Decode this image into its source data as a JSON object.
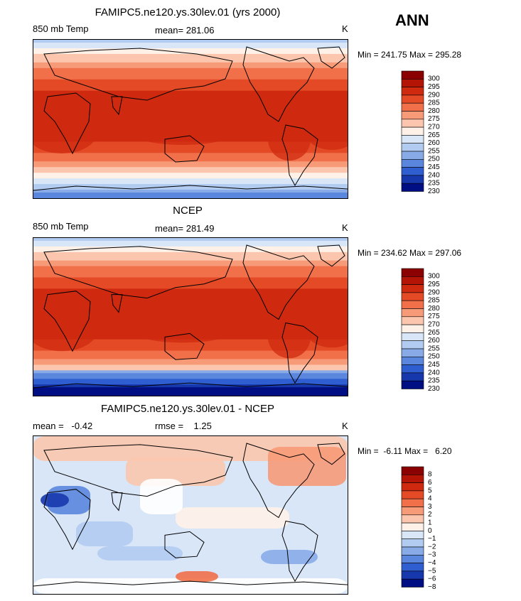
{
  "season": "ANN",
  "chart_data": [
    {
      "type": "heatmap",
      "title": "FAMIPC5.ne120.ys.30lev.01 (yrs 2000)",
      "left_label": "850 mb Temp",
      "stat_text": "mean= 281.06",
      "units": "K",
      "minmax_text": "Min = 241.75 Max = 295.28",
      "min": 241.75,
      "max": 295.28,
      "mean": 281.06,
      "colorbar": {
        "levels": [
          "300",
          "295",
          "290",
          "285",
          "280",
          "275",
          "270",
          "265",
          "260",
          "255",
          "250",
          "245",
          "240",
          "235",
          "230"
        ],
        "colors": [
          "#8b0000",
          "#b31405",
          "#cf2a10",
          "#e34a25",
          "#f1704a",
          "#f79a78",
          "#fbc6ad",
          "#fff1e8",
          "#d8e6f8",
          "#b1cbf1",
          "#88abe8",
          "#5b86dd",
          "#2f5ed0",
          "#1737ad",
          "#000e84"
        ]
      }
    },
    {
      "type": "heatmap",
      "title": "NCEP",
      "left_label": "850 mb Temp",
      "stat_text": "mean= 281.49",
      "units": "K",
      "minmax_text": "Min = 234.62 Max = 297.06",
      "min": 234.62,
      "max": 297.06,
      "mean": 281.49,
      "colorbar": {
        "levels": [
          "300",
          "295",
          "290",
          "285",
          "280",
          "275",
          "270",
          "265",
          "260",
          "255",
          "250",
          "245",
          "240",
          "235",
          "230"
        ],
        "colors": [
          "#8b0000",
          "#b31405",
          "#cf2a10",
          "#e34a25",
          "#f1704a",
          "#f79a78",
          "#fbc6ad",
          "#fff1e8",
          "#d8e6f8",
          "#b1cbf1",
          "#88abe8",
          "#5b86dd",
          "#2f5ed0",
          "#1737ad",
          "#000e84"
        ]
      }
    },
    {
      "type": "heatmap",
      "title": "FAMIPC5.ne120.ys.30lev.01 - NCEP",
      "left_label": "mean =   -0.42",
      "stat_text": "rmse =    1.25",
      "units": "K",
      "minmax_text": "Min =  -6.11 Max =   6.20",
      "min": -6.11,
      "max": 6.2,
      "mean": -0.42,
      "rmse": 1.25,
      "colorbar": {
        "levels": [
          "8",
          "6",
          "5",
          "4",
          "3",
          "2",
          "1",
          "0",
          "-1",
          "-2",
          "-3",
          "-4",
          "-5",
          "-6",
          "-8"
        ],
        "colors": [
          "#8b0000",
          "#b31405",
          "#cf2a10",
          "#e34a25",
          "#f1704a",
          "#f79a78",
          "#fbc6ad",
          "#fff1e8",
          "#d8e6f8",
          "#b1cbf1",
          "#88abe8",
          "#5b86dd",
          "#2f5ed0",
          "#1737ad",
          "#000e84"
        ]
      }
    }
  ]
}
